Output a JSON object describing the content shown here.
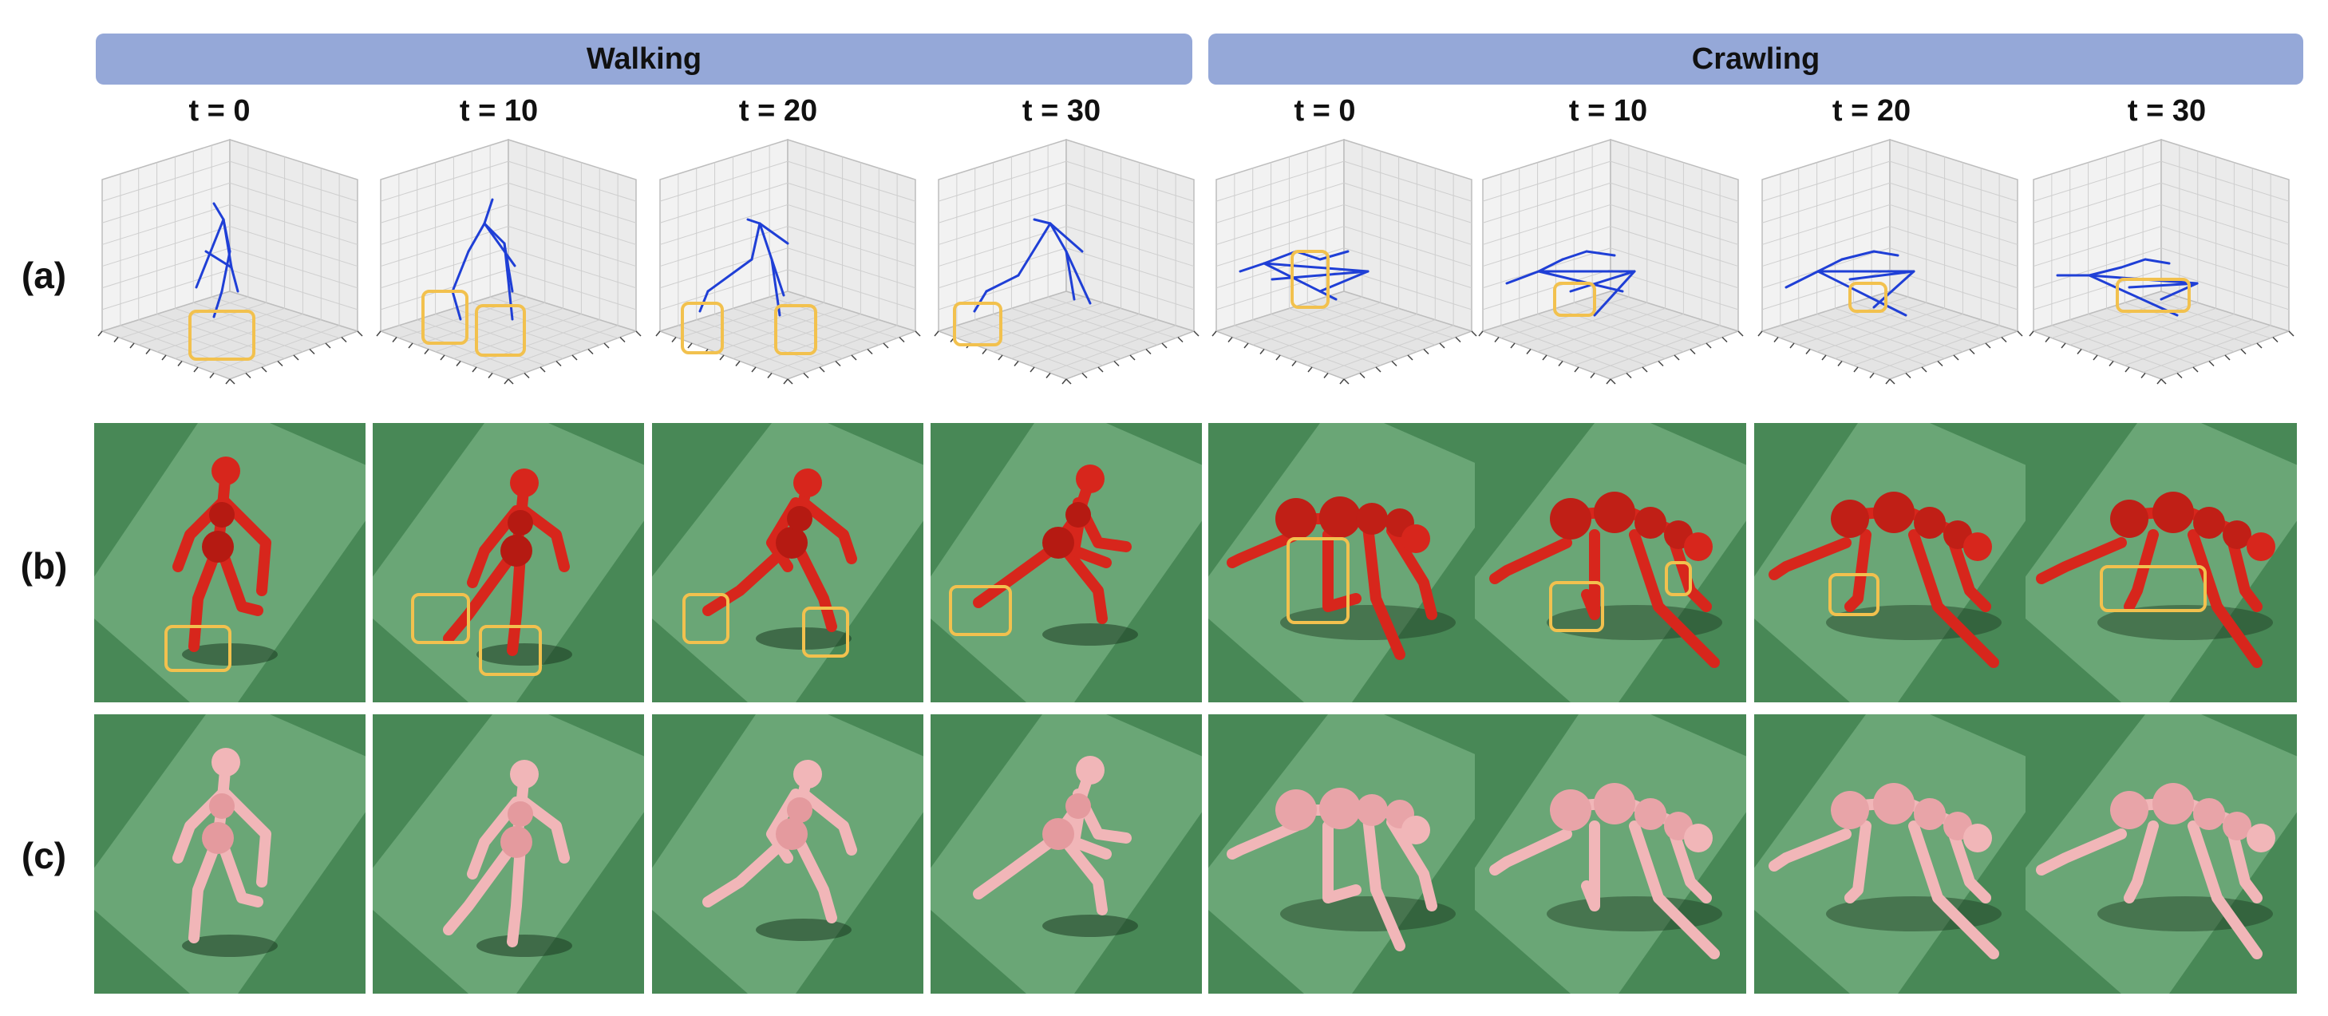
{
  "figure": {
    "groups": [
      {
        "label": "Walking"
      },
      {
        "label": "Crawling"
      }
    ],
    "time_labels": [
      "t = 0",
      "t = 10",
      "t = 20",
      "t = 30",
      "t = 0",
      "t = 10",
      "t = 20",
      "t = 30"
    ],
    "row_labels": [
      "(a)",
      "(b)",
      "(c)"
    ],
    "colors": {
      "banner": "#95a8d8",
      "skeleton": "#1f3fd6",
      "highlight_box": "#f2c14e",
      "floor_light": "#6aa676",
      "floor_dark": "#3d7d4c",
      "humanoid_red": "#d7261c",
      "humanoid_pink": "#f1b6b8"
    }
  }
}
